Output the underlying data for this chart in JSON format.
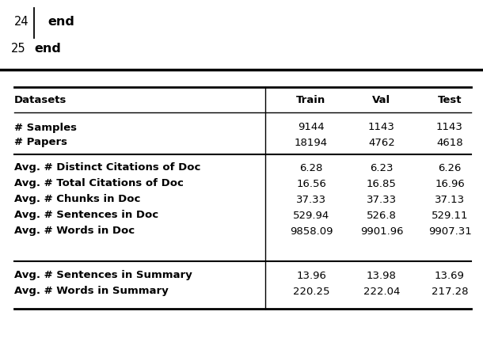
{
  "header": [
    "Datasets",
    "Train",
    "Val",
    "Test"
  ],
  "rows1": [
    [
      "# Samples",
      "9144",
      "1143",
      "1143"
    ],
    [
      "# Papers",
      "18194",
      "4762",
      "4618"
    ]
  ],
  "rows2": [
    [
      "Avg. # Distinct Citations of Doc",
      "6.28",
      "6.23",
      "6.26"
    ],
    [
      "Avg. # Total Citations of Doc",
      "16.56",
      "16.85",
      "16.96"
    ],
    [
      "Avg. # Chunks in Doc",
      "37.33",
      "37.33",
      "37.13"
    ],
    [
      "Avg. # Sentences in Doc",
      "529.94",
      "526.8",
      "529.11"
    ],
    [
      "Avg. # Words in Doc",
      "9858.09",
      "9901.96",
      "9907.31"
    ]
  ],
  "rows3": [
    [
      "Avg. # Sentences in Summary",
      "13.96",
      "13.98",
      "13.69"
    ],
    [
      "Avg. # Words in Summary",
      "220.25",
      "222.04",
      "217.28"
    ]
  ],
  "bg_color": "#ffffff",
  "text_color": "#000000",
  "code_fontsize": 11.5,
  "table_fontsize": 9.5
}
